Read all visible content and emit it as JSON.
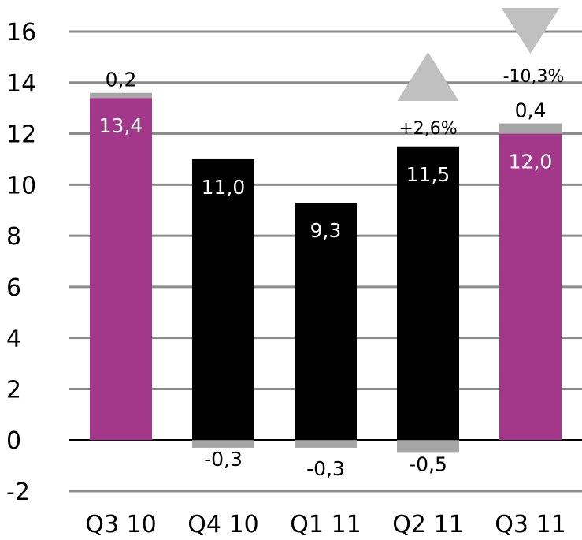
{
  "chart_data": {
    "type": "bar",
    "stacked": true,
    "categories": [
      "Q3 10",
      "Q4 10",
      "Q1 11",
      "Q2 11",
      "Q3 11"
    ],
    "series": [
      {
        "values": [
          13.4,
          11.0,
          9.3,
          11.5,
          12.0
        ],
        "labels": [
          "13,4",
          "11,0",
          "9,3",
          "11,5",
          "12,0"
        ],
        "colors": [
          "#a3388b",
          "#000000",
          "#000000",
          "#000000",
          "#a3388b"
        ]
      },
      {
        "values": [
          0.2,
          -0.3,
          -0.3,
          -0.5,
          0.4
        ],
        "labels": [
          "0,2",
          "-0,3",
          "-0,3",
          "-0,5",
          "0,4"
        ],
        "color": "#a6a6a6"
      }
    ],
    "ylim": [
      -2,
      16
    ],
    "yticks": [
      "16",
      "14",
      "12",
      "10",
      "8",
      "6",
      "4",
      "2",
      "0",
      "-2"
    ],
    "grid": true,
    "annotations": [
      {
        "category": "Q2 11",
        "text": "+2,6%",
        "direction": "up"
      },
      {
        "category": "Q3 11",
        "text": "-10,3%",
        "direction": "down"
      }
    ],
    "colors": {
      "grid": "#8c8c8c",
      "zero_line": "#000000",
      "arrow": "#c0c0c0",
      "label_on_bar": "#ffffff",
      "label_outside": "#000000"
    }
  }
}
